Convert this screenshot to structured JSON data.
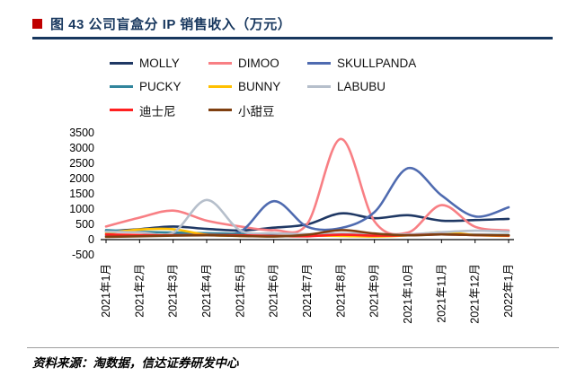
{
  "header": {
    "title": "图 43  公司盲盒分 IP 销售收入（万元）"
  },
  "footer": {
    "source": "资料来源：淘数据，信达证券研发中心"
  },
  "chart_data": {
    "type": "line",
    "title": "公司盲盒分IP销售收入（万元）",
    "xlabel": "",
    "ylabel": "",
    "ylim": [
      -500,
      3500
    ],
    "ytick_step": 500,
    "grid": false,
    "legend_position": "top",
    "x": [
      "2021年1月",
      "2021年2月",
      "2021年3月",
      "2021年4月",
      "2021年5月",
      "2021年6月",
      "2021年7月",
      "2021年8月",
      "2021年9月",
      "2021年10月",
      "2021年11月",
      "2021年12月",
      "2022年1月"
    ],
    "series": [
      {
        "name": "MOLLY",
        "color": "#1f3864",
        "values": [
          270,
          340,
          430,
          350,
          300,
          390,
          500,
          860,
          700,
          800,
          620,
          640,
          680
        ]
      },
      {
        "name": "DIMOO",
        "color": "#f87f84",
        "values": [
          430,
          720,
          950,
          620,
          430,
          310,
          520,
          3300,
          600,
          230,
          1130,
          420,
          300
        ]
      },
      {
        "name": "SKULLPANDA",
        "color": "#4f6bb0",
        "values": [
          120,
          140,
          160,
          200,
          260,
          1260,
          420,
          380,
          900,
          2340,
          1450,
          760,
          1060
        ]
      },
      {
        "name": "PUCKY",
        "color": "#31859c",
        "values": [
          310,
          260,
          230,
          210,
          190,
          170,
          160,
          180,
          160,
          150,
          170,
          160,
          150
        ]
      },
      {
        "name": "BUNNY",
        "color": "#ffc000",
        "values": [
          210,
          330,
          340,
          160,
          120,
          110,
          130,
          120,
          100,
          140,
          240,
          150,
          120
        ]
      },
      {
        "name": "LABUBU",
        "color": "#b6bfcb",
        "values": [
          260,
          240,
          230,
          1300,
          300,
          210,
          180,
          200,
          180,
          170,
          240,
          290,
          260
        ]
      },
      {
        "name": "迪士尼",
        "color": "#ff2020",
        "values": [
          170,
          150,
          140,
          150,
          140,
          120,
          110,
          160,
          130,
          140,
          170,
          150,
          130
        ]
      },
      {
        "name": "小甜豆",
        "color": "#7f3f10",
        "values": [
          90,
          110,
          130,
          140,
          120,
          100,
          160,
          310,
          200,
          140,
          170,
          150,
          140
        ]
      }
    ]
  }
}
